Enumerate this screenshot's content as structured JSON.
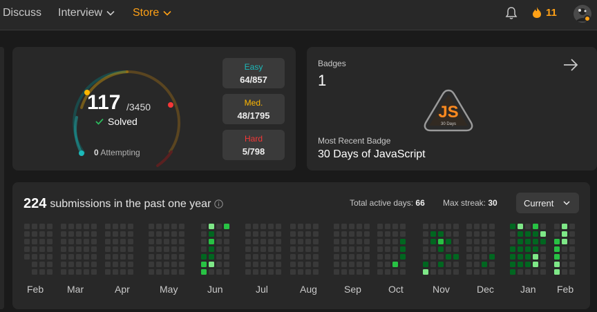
{
  "nav": {
    "discuss": "Discuss",
    "interview": "Interview",
    "store": "Store",
    "streak": "11"
  },
  "solved": {
    "count": "117",
    "total": "/3450",
    "label": "Solved",
    "attempting_count": "0",
    "attempting_label": "Attempting",
    "easy": {
      "name": "Easy",
      "value": "64/857",
      "color": "#1cbaba"
    },
    "medium": {
      "name": "Med.",
      "value": "48/1795",
      "color": "#ffb700"
    },
    "hard": {
      "name": "Hard",
      "value": "5/798",
      "color": "#f63737"
    }
  },
  "badges": {
    "label": "Badges",
    "count": "1",
    "recent_label": "Most Recent Badge",
    "recent_name": "30 Days of JavaScript",
    "badge_text": "JS",
    "badge_sub": "30 Days"
  },
  "submissions": {
    "count": "224",
    "title": "submissions in the past one year",
    "active_label": "Total active days:",
    "active_value": "66",
    "streak_label": "Max streak:",
    "streak_value": "30",
    "period": "Current",
    "months": [
      "Feb",
      "Mar",
      "Apr",
      "May",
      "Jun",
      "Jul",
      "Aug",
      "Sep",
      "Oct",
      "Nov",
      "Dec",
      "Jan",
      "Feb"
    ]
  },
  "colors": {
    "accent": "#ffa116",
    "empty": "#393939",
    "green1": "#016620",
    "green2": "#28c244",
    "green3": "#7ee787"
  }
}
